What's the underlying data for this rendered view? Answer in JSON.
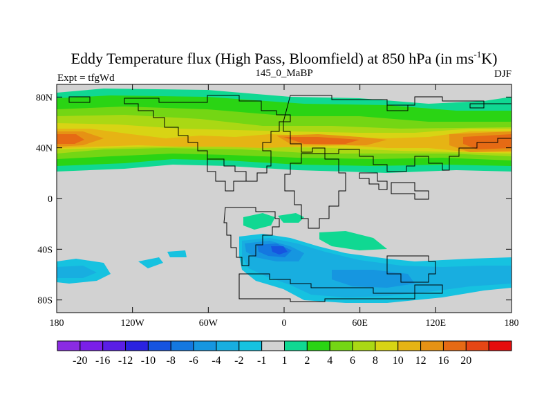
{
  "figure": {
    "title_main": "Eddy Temperature flux (High Pass, Bloomfield) at 850 hPa (in ms",
    "title_sup": "-1",
    "title_end": "K)",
    "left_label": "Expt = tfgWd",
    "center_label": "145_0_MaBP",
    "right_label": "DJF"
  },
  "map": {
    "projection": "cylindrical-equidistant",
    "lon_range": [
      -180,
      180
    ],
    "lat_range": [
      -90,
      90
    ],
    "lat_ticks": [
      {
        "lat": 80,
        "label": "80N"
      },
      {
        "lat": 40,
        "label": "40N"
      },
      {
        "lat": 0,
        "label": "0"
      },
      {
        "lat": -40,
        "label": "40S"
      },
      {
        "lat": -80,
        "label": "80S"
      }
    ],
    "lon_ticks": [
      {
        "lon": -180,
        "label": "180"
      },
      {
        "lon": -120,
        "label": "120W"
      },
      {
        "lon": -60,
        "label": "60W"
      },
      {
        "lon": 0,
        "label": "0"
      },
      {
        "lon": 60,
        "label": "60E"
      },
      {
        "lon": 120,
        "label": "120E"
      },
      {
        "lon": 180,
        "label": "180"
      }
    ],
    "missing_color": "#d2d2d2",
    "coastline_color": "#000000"
  },
  "colorbar": {
    "colors": [
      "#8a2be2",
      "#7a1fe8",
      "#5a1ee6",
      "#2a22e0",
      "#1654e0",
      "#1478e0",
      "#1696e0",
      "#18aee0",
      "#16c2e0",
      "#d2d2d2",
      "#10d892",
      "#2ad414",
      "#74d614",
      "#aad814",
      "#d8d414",
      "#e6b414",
      "#e69214",
      "#e66a14",
      "#e64614",
      "#e60c0c"
    ],
    "labels": [
      "-20",
      "-16",
      "-12",
      "-10",
      "-8",
      "-6",
      "-4",
      "-2",
      "-1",
      "1",
      "2",
      "4",
      "6",
      "8",
      "10",
      "12",
      "16",
      "20"
    ]
  }
}
